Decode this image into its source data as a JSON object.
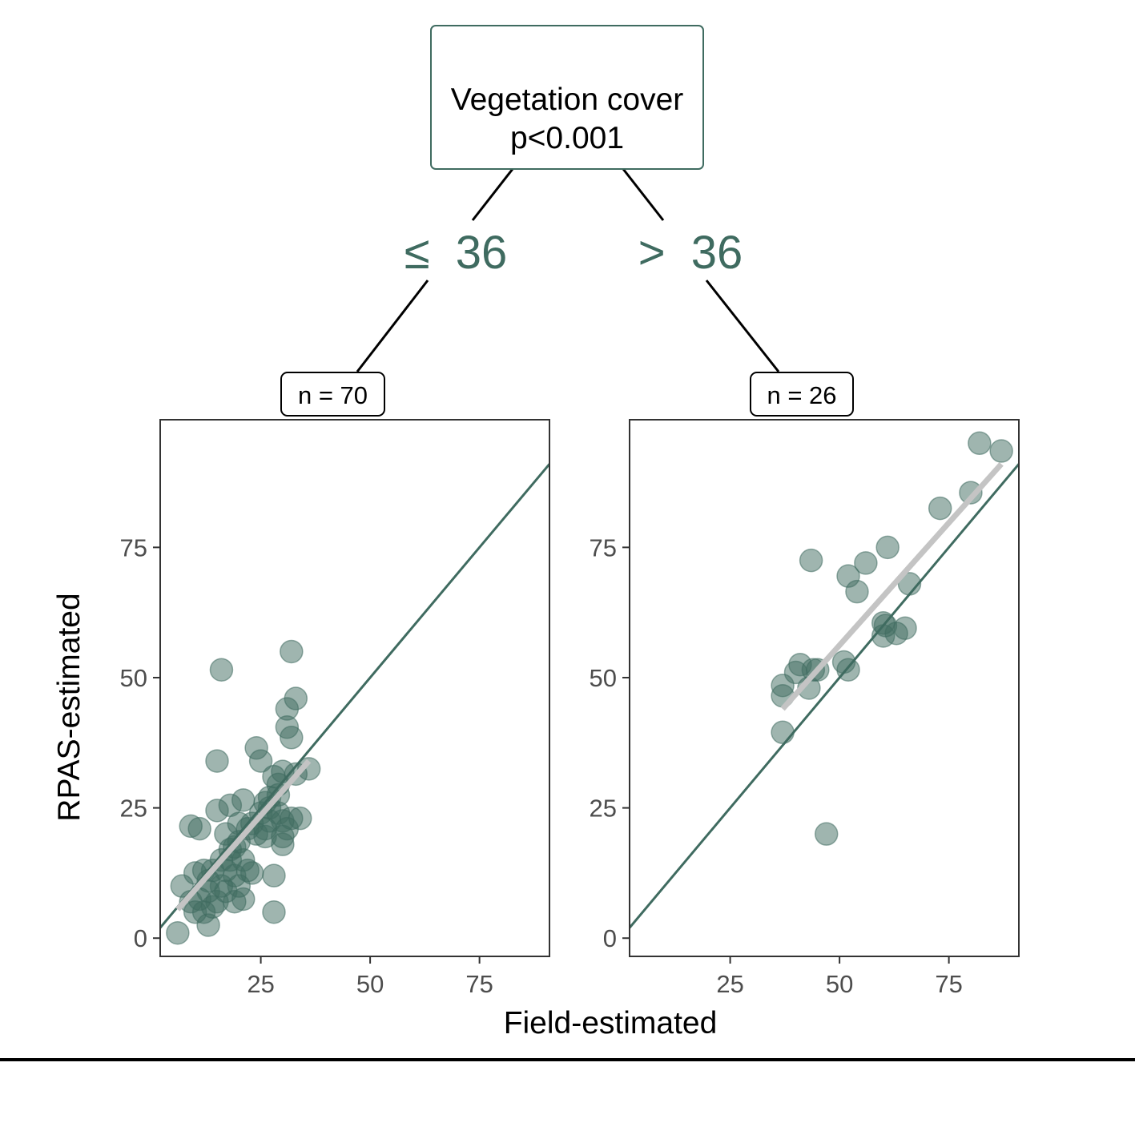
{
  "tree": {
    "root_label": "Vegetation cover",
    "root_pvalue": "p<0.001",
    "left_split": "≤  36",
    "right_split": ">  36",
    "left_n": "n = 70",
    "right_n": "n = 26"
  },
  "colors": {
    "accent": "#3f6b60",
    "points": "#3f6b60",
    "fit_line": "#c4c4c4",
    "axis": "#333333",
    "tick_label": "#4d4d4d"
  },
  "chart_data": [
    {
      "type": "scatter",
      "panel": "Vegetation cover ≤ 36",
      "xlabel": "Field-estimated",
      "ylabel": "RPAS-estimated",
      "xlim": [
        2,
        91
      ],
      "ylim": [
        -3.5,
        99.5
      ],
      "x_ticks": [
        25,
        50,
        75
      ],
      "y_ticks": [
        0,
        25,
        50,
        75
      ],
      "grid": false,
      "reference_line": {
        "slope": 1,
        "intercept": 0,
        "label": "1:1"
      },
      "fit_line": {
        "x": [
          6,
          36
        ],
        "y": [
          5.5,
          34
        ]
      },
      "points": [
        [
          6,
          1
        ],
        [
          7,
          10
        ],
        [
          9,
          21.5
        ],
        [
          11,
          21
        ],
        [
          9,
          7
        ],
        [
          10,
          5
        ],
        [
          10,
          12.5
        ],
        [
          12,
          13
        ],
        [
          13,
          2.5
        ],
        [
          14,
          13
        ],
        [
          15,
          34
        ],
        [
          15,
          24.5
        ],
        [
          16,
          51.5
        ],
        [
          14,
          6
        ],
        [
          15,
          7
        ],
        [
          16,
          15
        ],
        [
          17,
          9
        ],
        [
          17,
          13
        ],
        [
          18,
          17
        ],
        [
          18,
          25.5
        ],
        [
          19,
          7
        ],
        [
          19,
          12
        ],
        [
          19,
          17.5
        ],
        [
          20,
          10
        ],
        [
          20,
          22
        ],
        [
          21,
          26.5
        ],
        [
          21,
          7.5
        ],
        [
          21,
          15
        ],
        [
          22,
          21
        ],
        [
          22,
          13
        ],
        [
          23,
          12.5
        ],
        [
          24,
          36.5
        ],
        [
          25,
          34
        ],
        [
          25,
          24
        ],
        [
          26,
          26
        ],
        [
          26,
          19.5
        ],
        [
          27,
          22.5
        ],
        [
          27,
          25
        ],
        [
          28,
          12
        ],
        [
          28,
          5
        ],
        [
          28,
          31
        ],
        [
          29,
          24
        ],
        [
          29,
          27.5
        ],
        [
          30,
          32
        ],
        [
          30,
          18
        ],
        [
          30,
          22.5
        ],
        [
          31,
          40.5
        ],
        [
          31,
          44
        ],
        [
          31,
          21
        ],
        [
          32,
          55
        ],
        [
          32,
          38.5
        ],
        [
          32,
          23
        ],
        [
          33,
          46
        ],
        [
          33,
          31.5
        ],
        [
          34,
          23
        ],
        [
          36,
          32.5
        ],
        [
          11,
          7.5
        ],
        [
          12,
          5
        ],
        [
          13,
          11
        ],
        [
          16,
          10
        ],
        [
          18,
          15
        ],
        [
          20,
          18.5
        ],
        [
          23,
          22
        ],
        [
          24,
          20
        ],
        [
          26,
          21
        ],
        [
          27,
          27
        ],
        [
          29,
          29.5
        ],
        [
          30,
          19.5
        ],
        [
          13,
          9
        ],
        [
          17,
          20
        ]
      ]
    },
    {
      "type": "scatter",
      "panel": "Vegetation cover > 36",
      "xlabel": "Field-estimated",
      "ylabel": "RPAS-estimated",
      "xlim": [
        2,
        91
      ],
      "ylim": [
        -3.5,
        99.5
      ],
      "x_ticks": [
        25,
        50,
        75
      ],
      "y_ticks": [
        0,
        25,
        50,
        75
      ],
      "grid": false,
      "reference_line": {
        "slope": 1,
        "intercept": 0,
        "label": "1:1"
      },
      "fit_line": {
        "x": [
          37,
          87
        ],
        "y": [
          44,
          91
        ]
      },
      "points": [
        [
          37,
          48.5
        ],
        [
          37,
          46.5
        ],
        [
          37,
          39.5
        ],
        [
          40,
          51
        ],
        [
          41,
          52.5
        ],
        [
          43,
          48
        ],
        [
          43.5,
          72.5
        ],
        [
          44,
          51.5
        ],
        [
          45,
          51.5
        ],
        [
          47,
          20
        ],
        [
          51,
          53
        ],
        [
          52,
          51.5
        ],
        [
          52,
          69.5
        ],
        [
          54,
          66.5
        ],
        [
          56,
          72
        ],
        [
          60,
          60.5
        ],
        [
          60,
          58
        ],
        [
          60.5,
          60
        ],
        [
          61,
          75
        ],
        [
          63,
          58.5
        ],
        [
          65,
          59.5
        ],
        [
          66,
          68
        ],
        [
          73,
          82.5
        ],
        [
          80,
          85.5
        ],
        [
          82,
          95
        ],
        [
          87,
          93.5
        ]
      ]
    }
  ]
}
